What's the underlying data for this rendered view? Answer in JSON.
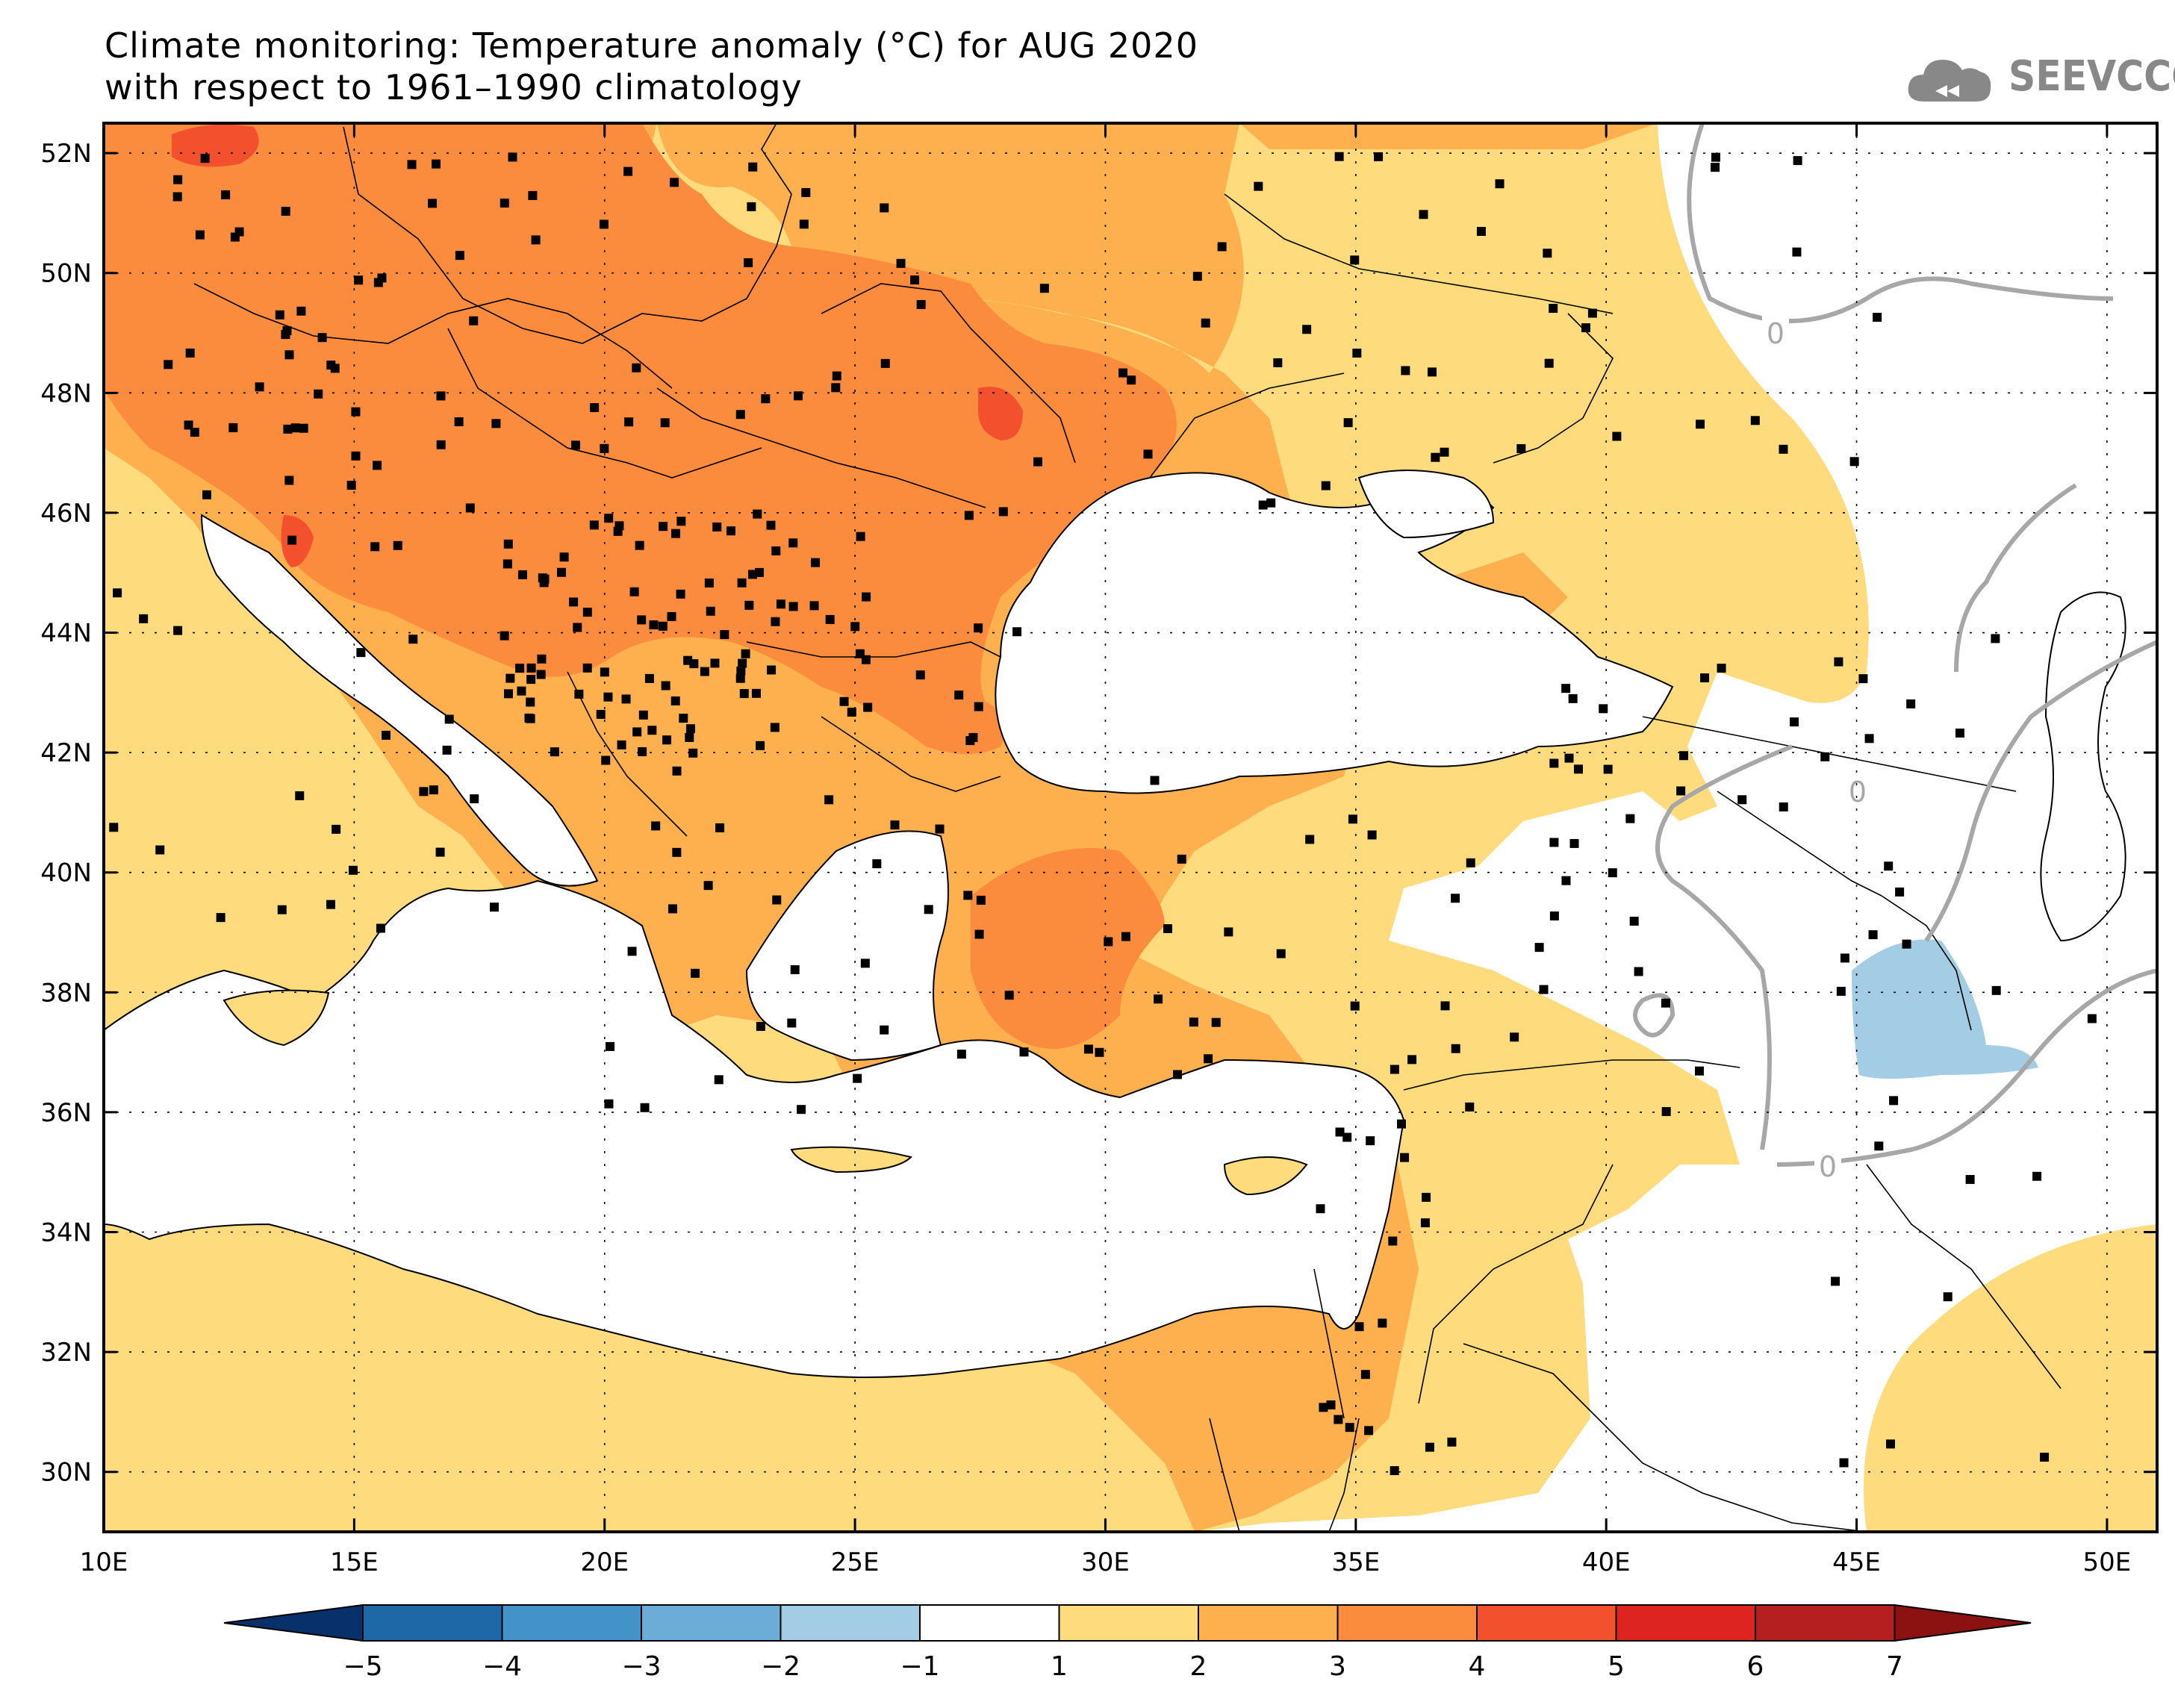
{
  "title": {
    "line1": "Climate monitoring: Temperature anomaly (°C) for AUG 2020",
    "line2": "with respect to 1961–1990 climatology"
  },
  "logo": {
    "text": "SEEVCCC",
    "icon": "cloud-icon"
  },
  "map": {
    "lon_range": [
      10,
      51
    ],
    "lat_range": [
      29,
      52.5
    ],
    "lon_ticks": [
      "10E",
      "15E",
      "20E",
      "25E",
      "30E",
      "35E",
      "40E",
      "45E",
      "50E"
    ],
    "lon_values": [
      10,
      15,
      20,
      25,
      30,
      35,
      40,
      45,
      50
    ],
    "lat_ticks": [
      "52N",
      "50N",
      "48N",
      "46N",
      "44N",
      "42N",
      "40N",
      "38N",
      "36N",
      "34N",
      "32N",
      "30N"
    ],
    "lat_values": [
      52,
      50,
      48,
      46,
      44,
      42,
      40,
      38,
      36,
      34,
      32,
      30
    ],
    "contour_labels": [
      "0",
      "0",
      "0"
    ],
    "station_marker": "square"
  },
  "colorbar": {
    "labels": [
      "−5",
      "−4",
      "−3",
      "−2",
      "−1",
      "1",
      "2",
      "3",
      "4",
      "5",
      "6",
      "7"
    ],
    "bins": [
      {
        "from": -6,
        "to": -5,
        "color": "#08306b"
      },
      {
        "from": -5,
        "to": -4,
        "color": "#1f68a8"
      },
      {
        "from": -4,
        "to": -3,
        "color": "#4393c8"
      },
      {
        "from": -3,
        "to": -2,
        "color": "#6badd6"
      },
      {
        "from": -2,
        "to": -1,
        "color": "#a3cde4"
      },
      {
        "from": -1,
        "to": 1,
        "color": "#ffffff"
      },
      {
        "from": 1,
        "to": 2,
        "color": "#fedc7d"
      },
      {
        "from": 2,
        "to": 3,
        "color": "#fdb04d"
      },
      {
        "from": 3,
        "to": 4,
        "color": "#fb8c3d"
      },
      {
        "from": 4,
        "to": 5,
        "color": "#f3512d"
      },
      {
        "from": 5,
        "to": 6,
        "color": "#de2420"
      },
      {
        "from": 6,
        "to": 7,
        "color": "#b51f1f"
      },
      {
        "from": 7,
        "to": 8,
        "color": "#8c1212"
      }
    ]
  }
}
